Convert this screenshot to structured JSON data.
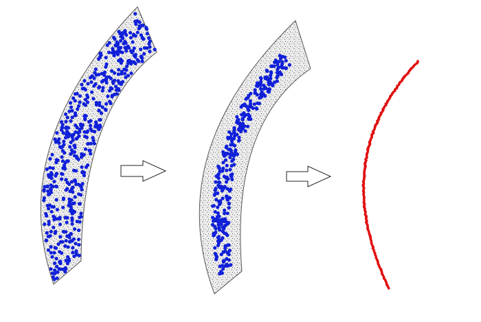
{
  "figure": {
    "panels": [
      {
        "id": "panel-1",
        "point_cloud_color": "#8a8a8a",
        "highlight_color": "#1020d8",
        "highlight_distribution": "scattered"
      },
      {
        "id": "panel-2",
        "point_cloud_color": "#8a8a8a",
        "highlight_color": "#1020d8",
        "highlight_distribution": "contracted-to-center"
      },
      {
        "id": "panel-3",
        "curve_color": "#e01010",
        "representation": "thin-medial-curve"
      }
    ],
    "arrows": [
      {
        "id": "arrow-1",
        "icon": "arrow-right-outline-icon",
        "from": "panel-1",
        "to": "panel-2"
      },
      {
        "id": "arrow-2",
        "icon": "arrow-right-outline-icon",
        "from": "panel-2",
        "to": "panel-3"
      }
    ],
    "colors": {
      "background": "#ffffff",
      "points": "#8a8a8a",
      "blue": "#1020d8",
      "red": "#e01010",
      "arrow_stroke": "#222222"
    }
  }
}
